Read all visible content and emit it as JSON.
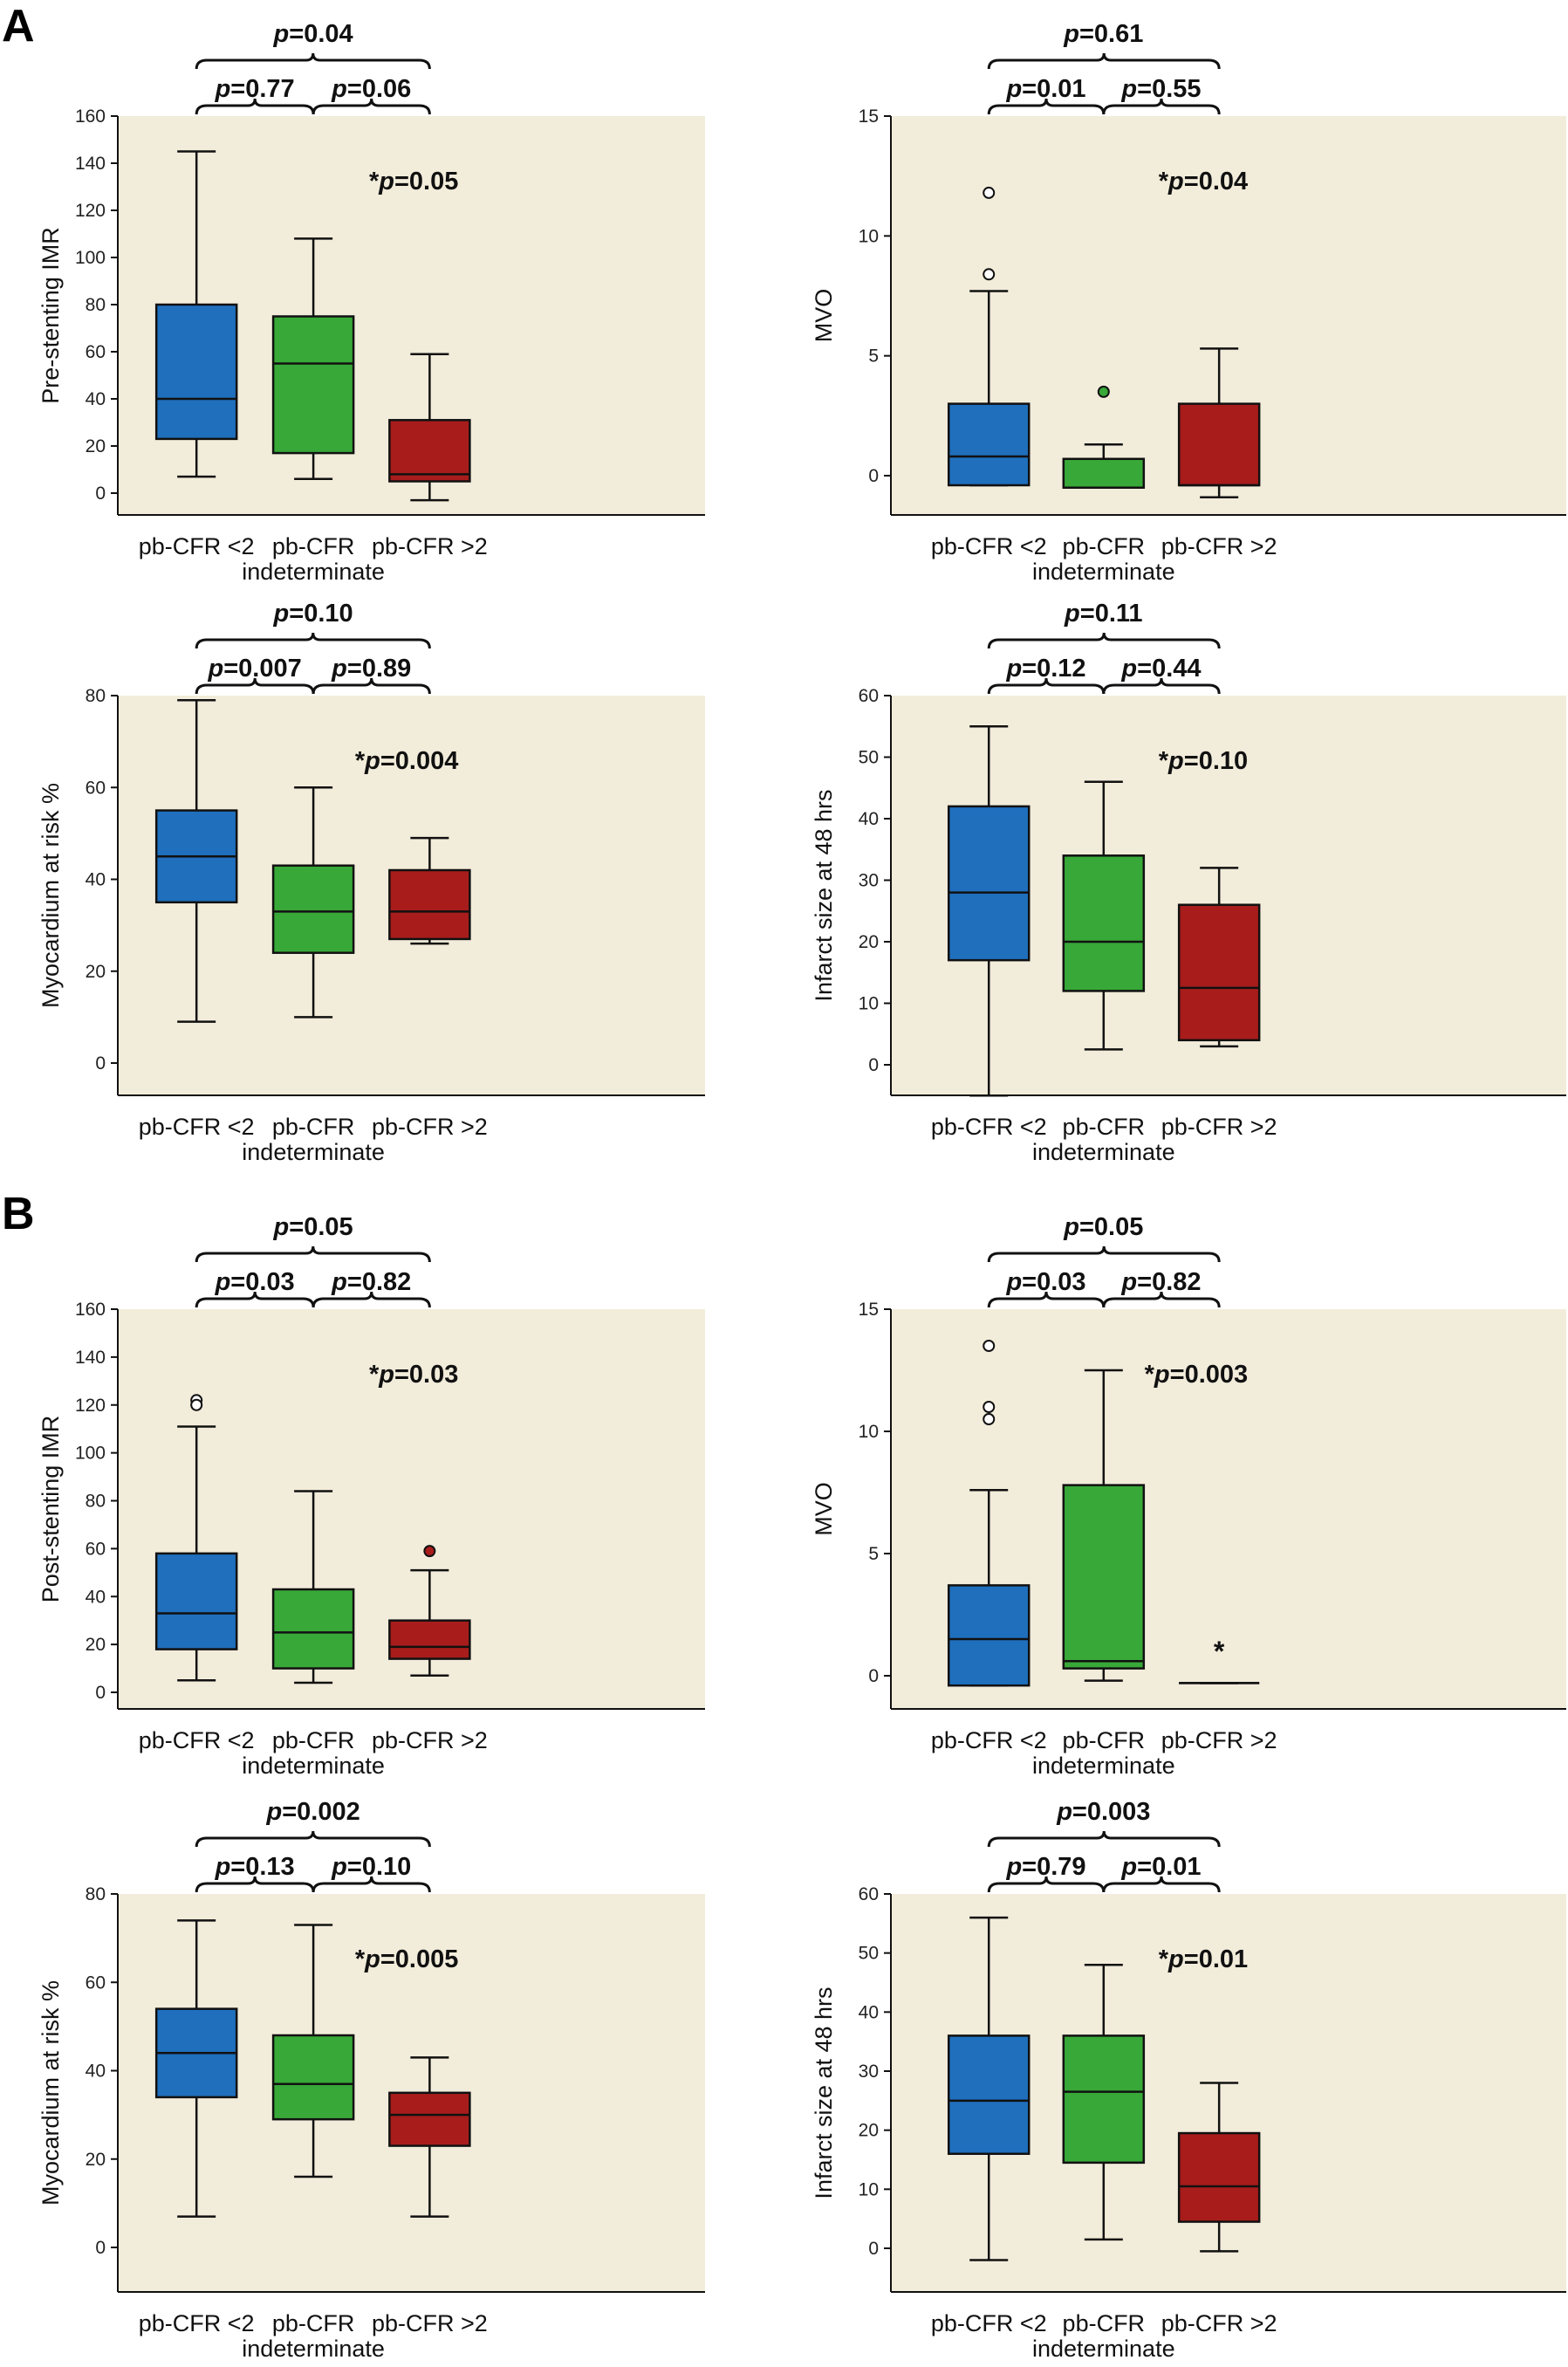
{
  "panels": {
    "A": "A",
    "B": "B"
  },
  "colors": {
    "plot_bg": "#f2ecda",
    "box_fill": [
      "#1f6fbd",
      "#38a838",
      "#a81c1c"
    ]
  },
  "chart_data": [
    {
      "id": "a1",
      "type": "box",
      "categories": [
        "pb-CFR <2",
        "pb-CFR\nindeterminate",
        "pb-CFR >2"
      ],
      "ylabel": "Pre-stenting IMR",
      "ylim": [
        -10,
        160
      ],
      "yticks": [
        0,
        20,
        40,
        60,
        80,
        100,
        120,
        140,
        160
      ],
      "boxes": [
        {
          "whisker_low": 7,
          "q1": 23,
          "median": 40,
          "q3": 80,
          "whisker_high": 145,
          "outliers": []
        },
        {
          "whisker_low": 6,
          "q1": 17,
          "median": 55,
          "q3": 75,
          "whisker_high": 108,
          "outliers": []
        },
        {
          "whisker_low": -3,
          "q1": 5,
          "median": 8,
          "q3": 31,
          "whisker_high": 59,
          "outliers": []
        }
      ],
      "outlier_style": "open",
      "brackets": {
        "top": "p=0.04",
        "left": "p=0.77",
        "right": "p=0.06"
      },
      "overall": "*p=0.05"
    },
    {
      "id": "a2",
      "type": "box",
      "categories": [
        "pb-CFR <2",
        "pb-CFR\nindeterminate",
        "pb-CFR >2"
      ],
      "ylabel": "MVO",
      "ylim": [
        -1.5,
        15
      ],
      "yticks": [
        0,
        5,
        10,
        15
      ],
      "boxes": [
        {
          "whisker_low": -0.4,
          "q1": -0.4,
          "median": 0.8,
          "q3": 3,
          "whisker_high": 7.7,
          "outliers": [
            11.8,
            8.4
          ]
        },
        {
          "whisker_low": -0.5,
          "q1": -0.5,
          "median": -0.5,
          "q3": 0.7,
          "whisker_high": 1.3,
          "outliers": [
            3.5
          ]
        },
        {
          "whisker_low": -0.9,
          "q1": -0.4,
          "median": -0.4,
          "q3": 3,
          "whisker_high": 5.3,
          "outliers": []
        }
      ],
      "outlier_style": "open_first_filled_middle",
      "brackets": {
        "top": "p=0.61",
        "left": "p=0.01",
        "right": "p=0.55"
      },
      "overall": "*p=0.04"
    },
    {
      "id": "a3",
      "type": "box",
      "categories": [
        "pb-CFR <2",
        "pb-CFR\nindeterminate",
        "pb-CFR >2"
      ],
      "ylabel": "Myocardium at risk %",
      "ylim": [
        -7,
        80
      ],
      "yticks": [
        0,
        20,
        40,
        60,
        80
      ],
      "boxes": [
        {
          "whisker_low": 9,
          "q1": 35,
          "median": 45,
          "q3": 55,
          "whisker_high": 79,
          "outliers": []
        },
        {
          "whisker_low": 10,
          "q1": 24,
          "median": 33,
          "q3": 43,
          "whisker_high": 60,
          "outliers": []
        },
        {
          "whisker_low": 26,
          "q1": 27,
          "median": 33,
          "q3": 42,
          "whisker_high": 49,
          "outliers": []
        }
      ],
      "outlier_style": "open",
      "brackets": {
        "top": "p=0.10",
        "left": "p=0.007",
        "right": "p=0.89"
      },
      "overall": "*p=0.004"
    },
    {
      "id": "a4",
      "type": "box",
      "categories": [
        "pb-CFR <2",
        "pb-CFR\nindeterminate",
        "pb-CFR >2"
      ],
      "ylabel": "Infarct size at 48 hrs",
      "ylim": [
        -5,
        60
      ],
      "yticks": [
        0,
        10,
        20,
        30,
        40,
        50,
        60
      ],
      "boxes": [
        {
          "whisker_low": -5,
          "q1": 17,
          "median": 28,
          "q3": 42,
          "whisker_high": 55,
          "outliers": []
        },
        {
          "whisker_low": 2.5,
          "q1": 12,
          "median": 20,
          "q3": 34,
          "whisker_high": 46,
          "outliers": []
        },
        {
          "whisker_low": 3,
          "q1": 4,
          "median": 12.5,
          "q3": 26,
          "whisker_high": 32,
          "outliers": []
        }
      ],
      "outlier_style": "open",
      "brackets": {
        "top": "p=0.11",
        "left": "p=0.12",
        "right": "p=0.44"
      },
      "overall": "*p=0.10"
    },
    {
      "id": "b1",
      "type": "box",
      "categories": [
        "pb-CFR <2",
        "pb-CFR\nindeterminate",
        "pb-CFR >2"
      ],
      "ylabel": "Post-stenting IMR",
      "ylim": [
        -8,
        160
      ],
      "yticks": [
        0,
        20,
        40,
        60,
        80,
        100,
        120,
        140,
        160
      ],
      "boxes": [
        {
          "whisker_low": 5,
          "q1": 18,
          "median": 33,
          "q3": 58,
          "whisker_high": 111,
          "outliers": [
            122,
            120
          ]
        },
        {
          "whisker_low": 4,
          "q1": 10,
          "median": 25,
          "q3": 43,
          "whisker_high": 84,
          "outliers": []
        },
        {
          "whisker_low": 7,
          "q1": 14,
          "median": 19,
          "q3": 30,
          "whisker_high": 51,
          "outliers": [
            59
          ]
        }
      ],
      "outlier_style": "open_first_filled_last",
      "brackets": {
        "top": "p=0.05",
        "left": "p=0.03",
        "right": "p=0.82"
      },
      "overall": "*p=0.03"
    },
    {
      "id": "b2",
      "type": "box",
      "categories": [
        "pb-CFR <2",
        "pb-CFR\nindeterminate",
        "pb-CFR >2"
      ],
      "ylabel": "MVO",
      "ylim": [
        -1.3,
        15
      ],
      "yticks": [
        0,
        5,
        10,
        15
      ],
      "boxes": [
        {
          "whisker_low": -0.4,
          "q1": -0.4,
          "median": 1.5,
          "q3": 3.7,
          "whisker_high": 7.6,
          "outliers": [
            13.5,
            11.0,
            10.5
          ]
        },
        {
          "whisker_low": -0.2,
          "q1": 0.3,
          "median": 0.6,
          "q3": 7.8,
          "whisker_high": 12.5,
          "outliers": []
        },
        {
          "whisker_low": -0.3,
          "q1": -0.3,
          "median": -0.3,
          "q3": -0.3,
          "whisker_high": -0.3,
          "outliers": []
        }
      ],
      "outlier_style": "open",
      "group3_marker": "*",
      "brackets": {
        "top": "p=0.05",
        "left": "p=0.03",
        "right": "p=0.82"
      },
      "overall": "*p=0.003"
    },
    {
      "id": "b3",
      "type": "box",
      "categories": [
        "pb-CFR <2",
        "pb-CFR\nindeterminate",
        "pb-CFR >2"
      ],
      "ylabel": "Myocardium at risk %",
      "ylim": [
        -7,
        80
      ],
      "yticks": [
        0,
        20,
        40,
        60,
        80
      ],
      "boxes": [
        {
          "whisker_low": 7,
          "q1": 34,
          "median": 44,
          "q3": 54,
          "whisker_high": 74,
          "outliers": []
        },
        {
          "whisker_low": 16,
          "q1": 29,
          "median": 37,
          "q3": 48,
          "whisker_high": 73,
          "outliers": []
        },
        {
          "whisker_low": 7,
          "q1": 23,
          "median": 30,
          "q3": 35,
          "whisker_high": 43,
          "outliers": []
        }
      ],
      "outlier_style": "open",
      "brackets": {
        "top": "p=0.002",
        "left": "p=0.13",
        "right": "p=0.10"
      },
      "overall": "*p=0.005"
    },
    {
      "id": "b4",
      "type": "box",
      "categories": [
        "pb-CFR <2",
        "pb-CFR\nindeterminate",
        "pb-CFR >2"
      ],
      "ylabel": "Infarct size at 48 hrs",
      "ylim": [
        -5,
        60
      ],
      "yticks": [
        0,
        10,
        20,
        30,
        40,
        50,
        60
      ],
      "boxes": [
        {
          "whisker_low": -2,
          "q1": 16,
          "median": 25,
          "q3": 36,
          "whisker_high": 56,
          "outliers": []
        },
        {
          "whisker_low": 1.5,
          "q1": 14.5,
          "median": 26.5,
          "q3": 36,
          "whisker_high": 48,
          "outliers": []
        },
        {
          "whisker_low": -0.5,
          "q1": 4.5,
          "median": 10.5,
          "q3": 19.5,
          "whisker_high": 28,
          "outliers": []
        }
      ],
      "outlier_style": "open",
      "brackets": {
        "top": "p=0.003",
        "left": "p=0.79",
        "right": "p=0.01"
      },
      "overall": "*p=0.01"
    }
  ]
}
